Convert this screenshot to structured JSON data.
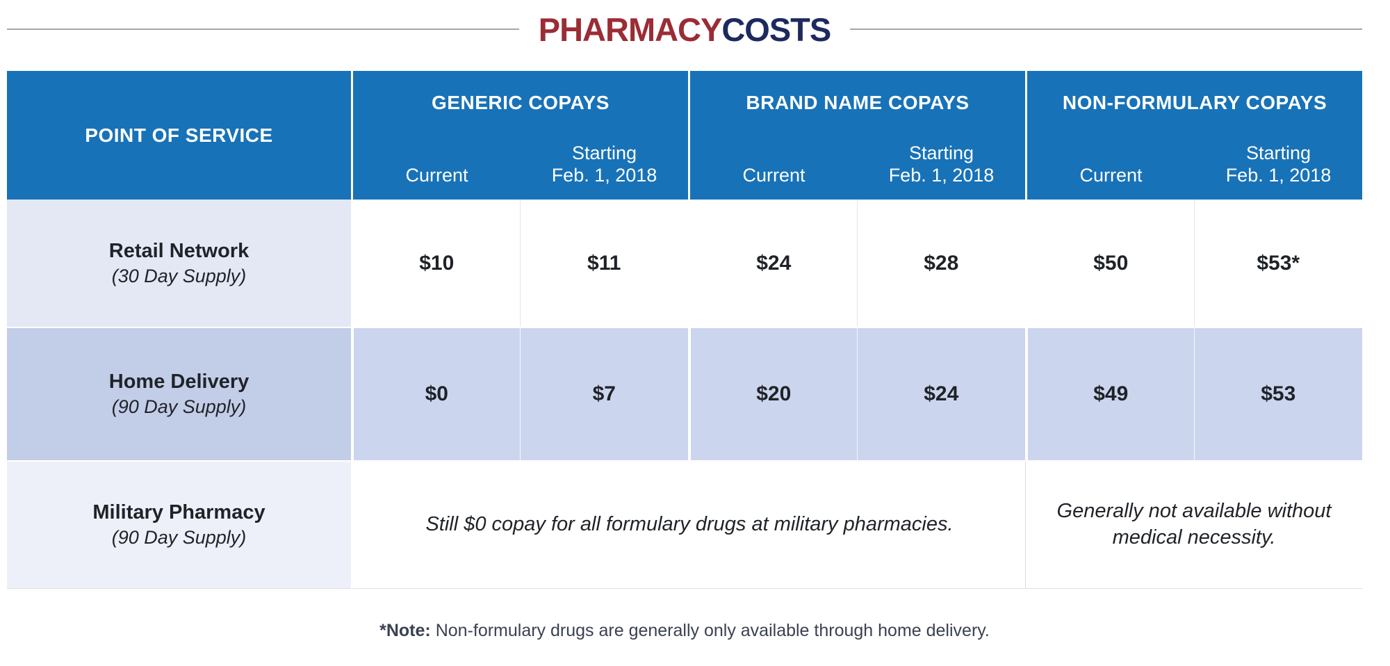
{
  "title": {
    "word1": "PHARMACY",
    "word2": "COSTS"
  },
  "table": {
    "corner_header": "POINT OF SERVICE",
    "sections": [
      {
        "label": "GENERIC COPAYS",
        "sub_current": "Current",
        "sub_starting_line1": "Starting",
        "sub_starting_line2": "Feb. 1, 2018"
      },
      {
        "label": "BRAND NAME COPAYS",
        "sub_current": "Current",
        "sub_starting_line1": "Starting",
        "sub_starting_line2": "Feb. 1, 2018"
      },
      {
        "label": "NON-FORMULARY COPAYS",
        "sub_current": "Current",
        "sub_starting_line1": "Starting",
        "sub_starting_line2": "Feb. 1, 2018"
      }
    ],
    "rows": [
      {
        "name": "Retail Network",
        "supply": "(30 Day Supply)",
        "values": [
          "$10",
          "$11",
          "$24",
          "$28",
          "$50",
          "$53*"
        ]
      },
      {
        "name": "Home Delivery",
        "supply": "(90 Day Supply)",
        "values": [
          "$0",
          "$7",
          "$20",
          "$24",
          "$49",
          "$53"
        ]
      },
      {
        "name": "Military Pharmacy",
        "supply": "(90 Day Supply)",
        "note_left": "Still $0 copay for all formulary drugs at military pharmacies.",
        "note_right": "Generally not available without medical necessity."
      }
    ]
  },
  "footnote": {
    "label": "*Note:",
    "text": "Non-formulary drugs are generally only available through home delivery."
  },
  "colors": {
    "header_blue": "#1872b8",
    "title_red": "#9b2c35",
    "title_navy": "#1d2a5e",
    "row1_label_bg": "#e4e8f5",
    "row2_label_bg": "#c2cde8",
    "row2_value_bg": "#ccd5ee",
    "row3_label_bg": "#eef0f9",
    "text_dark": "#1f2328",
    "rule_gray": "#a6a6a6"
  },
  "chart_data": {
    "type": "table",
    "title": "PHARMACYCOSTS",
    "columns": [
      "Point of Service",
      "Generic Current",
      "Generic Starting Feb. 1, 2018",
      "Brand Name Current",
      "Brand Name Starting Feb. 1, 2018",
      "Non-Formulary Current",
      "Non-Formulary Starting Feb. 1, 2018"
    ],
    "rows": [
      [
        "Retail Network (30 Day Supply)",
        "$10",
        "$11",
        "$24",
        "$28",
        "$50",
        "$53*"
      ],
      [
        "Home Delivery (90 Day Supply)",
        "$0",
        "$7",
        "$20",
        "$24",
        "$49",
        "$53"
      ],
      [
        "Military Pharmacy (90 Day Supply)",
        "Still $0 copay for all formulary drugs at military pharmacies.",
        "",
        "",
        "",
        "Generally not available without medical necessity.",
        ""
      ]
    ]
  }
}
